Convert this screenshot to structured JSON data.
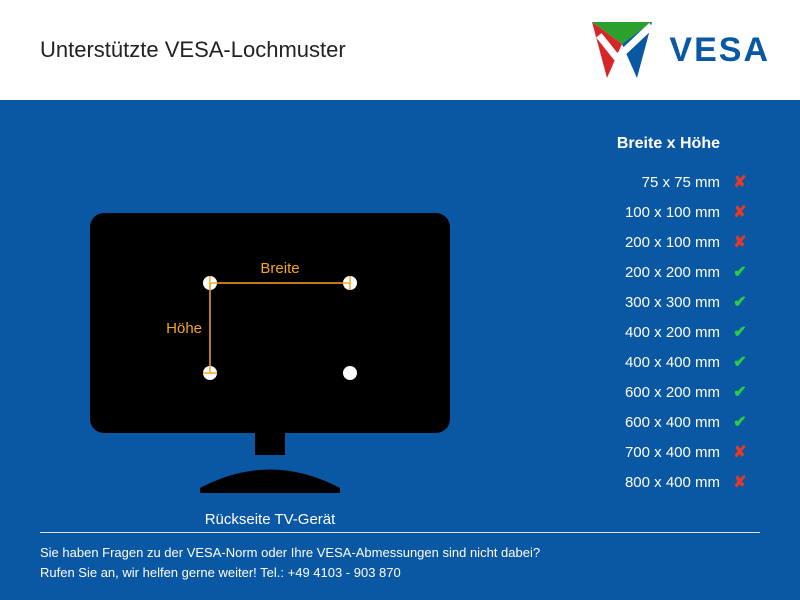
{
  "colors": {
    "main_bg": "#0a57a4",
    "header_bg": "#ffffff",
    "title_text": "#222222",
    "logo_text": "#0a57a4",
    "body_text": "#ffffff",
    "accent_orange": "#f5a623",
    "check_green": "#2ecc40",
    "cross_red": "#e03a2a",
    "tv_black": "#000000",
    "hole_white": "#ffffff"
  },
  "header": {
    "title": "Unterstützte VESA-Lochmuster",
    "logo_text": "VESA",
    "logo_colors": {
      "top": "#2ca02c",
      "left": "#d62728",
      "right": "#0a57a4"
    }
  },
  "diagram": {
    "width_label": "Breite",
    "height_label": "Höhe",
    "caption": "Rückseite TV-Gerät"
  },
  "table": {
    "header": "Breite x Höhe",
    "rows": [
      {
        "dim": "75 x 75 mm",
        "ok": false
      },
      {
        "dim": "100 x 100 mm",
        "ok": false
      },
      {
        "dim": "200 x 100 mm",
        "ok": false
      },
      {
        "dim": "200 x 200 mm",
        "ok": true
      },
      {
        "dim": "300 x 300 mm",
        "ok": true
      },
      {
        "dim": "400 x 200 mm",
        "ok": true
      },
      {
        "dim": "400 x 400 mm",
        "ok": true
      },
      {
        "dim": "600 x 200 mm",
        "ok": true
      },
      {
        "dim": "600 x 400 mm",
        "ok": true
      },
      {
        "dim": "700 x 400 mm",
        "ok": false
      },
      {
        "dim": "800 x 400 mm",
        "ok": false
      }
    ]
  },
  "footer": {
    "line1": "Sie haben Fragen zu der VESA-Norm oder Ihre VESA-Abmessungen sind nicht dabei?",
    "line2": "Rufen Sie an, wir helfen gerne weiter! Tel.: +49 4103 - 903 870"
  }
}
